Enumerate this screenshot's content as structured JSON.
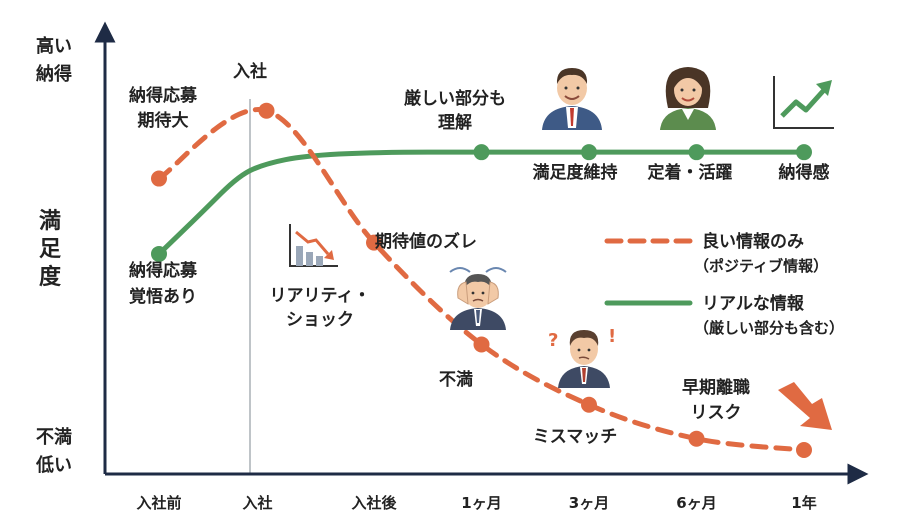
{
  "chart_data": {
    "type": "line",
    "categories": [
      "入社前",
      "入社",
      "入社後",
      "1ヶ月",
      "3ヶ月",
      "6ヶ月",
      "1年"
    ],
    "ylim": [
      0,
      100
    ],
    "y_axis": {
      "label": "満足度",
      "top": [
        "高い",
        "納得"
      ],
      "bottom": [
        "不満",
        "低い"
      ]
    },
    "series": [
      {
        "name": "良い情報のみ",
        "sub": "（ポジティブ情報）",
        "color": "#e06a42",
        "dashed": true,
        "values": [
          72,
          90,
          55,
          28,
          12,
          3,
          0
        ]
      },
      {
        "name": "リアルな情報",
        "sub": "（厳しい部分も含む）",
        "color": "#4e9a5c",
        "dashed": false,
        "smooth_points": [
          [
            0,
            52
          ],
          [
            0.4,
            63
          ],
          [
            0.75,
            73
          ],
          [
            1.0,
            76
          ],
          [
            1.35,
            78
          ],
          [
            2,
            79
          ],
          [
            3,
            79
          ],
          [
            4,
            79
          ],
          [
            5,
            79
          ],
          [
            6,
            79
          ]
        ],
        "markers": [
          0,
          3,
          4,
          5,
          6
        ],
        "values": [
          52,
          null,
          null,
          79,
          79,
          79,
          79
        ]
      }
    ],
    "legend": "right",
    "annotations": {
      "orange": [
        {
          "lines": [
            "納得応募",
            "期待大"
          ]
        },
        {
          "lines": [
            "入社"
          ]
        },
        {
          "lines": [
            "期待値のズレ"
          ]
        },
        {
          "lines": [
            "リアリティ・",
            "ショック"
          ]
        },
        {
          "lines": [
            "不満"
          ]
        },
        {
          "lines": [
            "ミスマッチ"
          ]
        },
        {
          "lines": [
            "早期離職",
            "リスク"
          ]
        }
      ],
      "green": [
        {
          "lines": [
            "納得応募",
            "覚悟あり"
          ]
        },
        {
          "lines": [
            "厳しい部分も",
            "理解"
          ]
        },
        {
          "lines": [
            "満足度維持"
          ]
        },
        {
          "lines": [
            "定着・活躍"
          ]
        },
        {
          "lines": [
            "納得感"
          ]
        }
      ]
    }
  },
  "icons": {
    "trend_down_small": "chart-down-icon",
    "trend_down_big": "arrow-down-icon",
    "trend_up": "chart-up-icon",
    "person_confused": "worried-person-icon",
    "person_question": "confused-person-icon",
    "person_man": "satisfied-man-icon",
    "person_woman": "satisfied-woman-icon"
  },
  "colors": {
    "orange": "#e06a42",
    "green": "#4e9a5c",
    "axis": "#1e2b45"
  }
}
